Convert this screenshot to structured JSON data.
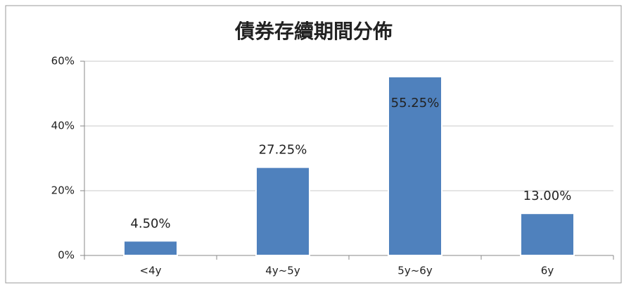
{
  "chart_data": {
    "type": "bar",
    "title": "債券存續期間分佈",
    "categories": [
      "<4y",
      "4y~5y",
      "5y~6y",
      "6y"
    ],
    "values": [
      4.5,
      27.25,
      55.25,
      13.0
    ],
    "value_labels": [
      "4.50%",
      "27.25%",
      "55.25%",
      "13.00%"
    ],
    "color": "#4f81bd",
    "ylim": [
      0,
      60
    ],
    "yticks": [
      {
        "value": 0,
        "label": "0%"
      },
      {
        "value": 20,
        "label": "20%"
      },
      {
        "value": 40,
        "label": "40%"
      },
      {
        "value": 60,
        "label": "60%"
      }
    ],
    "grid": true
  }
}
